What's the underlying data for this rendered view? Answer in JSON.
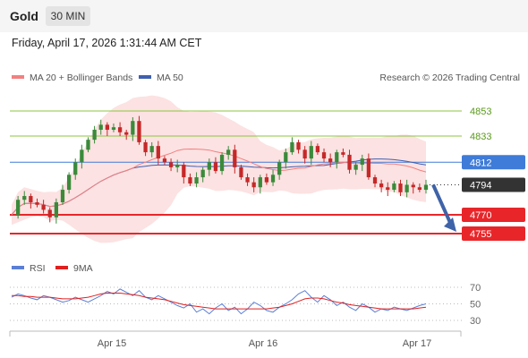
{
  "header": {
    "instrument": "Gold",
    "timeframe": "30 MIN"
  },
  "datetime": "Friday, April 17, 2026 1:31:44 AM CET",
  "credit": "Research © 2026 Trading Central",
  "legend": {
    "ma20_bb": "MA 20 + Bollinger Bands",
    "ma50": "MA 50",
    "rsi": "RSI",
    "rsi_ma": "9MA"
  },
  "colors": {
    "candle_up": "#3a8a3a",
    "candle_down": "#c62828",
    "bollinger_fill": "#fbd8d8",
    "ma20": "#f28080",
    "ma50": "#3f5fb0",
    "resistance": "#8cc63f",
    "support": "#e8262a",
    "pivot": "#3f7bd8",
    "last_price": "#333333",
    "rsi": "#5a7fd6",
    "rsi_ma": "#e02020"
  },
  "chart_data": [
    {
      "type": "candlestick",
      "title": "",
      "xlabel": "",
      "ylabel": "",
      "ylim": [
        4744,
        4880
      ],
      "x_ticks": [
        "Apr 15",
        "Apr 16",
        "Apr 17"
      ],
      "levels": [
        {
          "value": 4853,
          "label": "4853",
          "kind": "resistance"
        },
        {
          "value": 4833,
          "label": "4833",
          "kind": "resistance"
        },
        {
          "value": 4812,
          "label": "4812",
          "kind": "pivot"
        },
        {
          "value": 4794,
          "label": "4794",
          "kind": "last"
        },
        {
          "value": 4770,
          "label": "4770",
          "kind": "support"
        },
        {
          "value": 4755,
          "label": "4755",
          "kind": "support"
        }
      ],
      "forecast": {
        "direction": "down",
        "from": 4794,
        "to": 4755
      },
      "close_series": [
        4770,
        4782,
        4785,
        4780,
        4778,
        4774,
        4768,
        4780,
        4790,
        4802,
        4812,
        4822,
        4830,
        4838,
        4842,
        4838,
        4840,
        4836,
        4834,
        4845,
        4828,
        4820,
        4825,
        4815,
        4812,
        4808,
        4810,
        4800,
        4795,
        4800,
        4806,
        4812,
        4805,
        4818,
        4822,
        4808,
        4800,
        4796,
        4792,
        4800,
        4796,
        4802,
        4812,
        4820,
        4828,
        4822,
        4815,
        4825,
        4820,
        4815,
        4812,
        4820,
        4818,
        4806,
        4810,
        4815,
        4800,
        4795,
        4792,
        4790,
        4795,
        4788,
        4794,
        4792,
        4790,
        4794
      ]
    },
    {
      "type": "line",
      "title": "",
      "ylim": [
        20,
        80
      ],
      "y_ticks": [
        70,
        50,
        30
      ],
      "series": [
        {
          "name": "RSI",
          "values": [
            58,
            62,
            60,
            57,
            55,
            60,
            58,
            55,
            52,
            54,
            58,
            55,
            52,
            56,
            60,
            65,
            62,
            68,
            64,
            60,
            66,
            58,
            55,
            60,
            56,
            52,
            48,
            45,
            50,
            40,
            44,
            38,
            45,
            50,
            42,
            46,
            38,
            44,
            52,
            48,
            42,
            40,
            46,
            50,
            55,
            62,
            66,
            58,
            52,
            60,
            55,
            48,
            52,
            46,
            42,
            50,
            46,
            40,
            44,
            42,
            46,
            44,
            42,
            45,
            48,
            50
          ]
        },
        {
          "name": "9MA",
          "values": [
            60,
            60,
            59,
            59,
            58,
            58,
            58,
            57,
            56,
            56,
            56,
            57,
            58,
            60,
            62,
            63,
            63,
            63,
            62,
            61,
            60,
            58,
            57,
            56,
            55,
            53,
            51,
            49,
            48,
            47,
            46,
            45,
            44,
            44,
            44,
            44,
            44,
            44,
            44,
            44,
            44,
            45,
            46,
            48,
            50,
            53,
            56,
            57,
            57,
            56,
            54,
            52,
            51,
            49,
            48,
            47,
            46,
            45,
            44,
            44,
            44,
            44,
            44,
            44,
            45,
            46
          ]
        }
      ]
    }
  ]
}
